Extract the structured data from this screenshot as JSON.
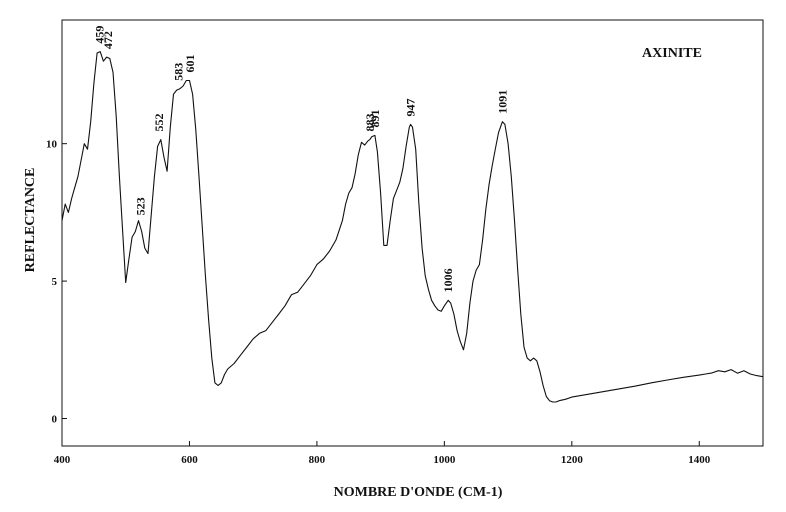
{
  "chart_data": {
    "type": "line",
    "title": "AXINITE",
    "xlabel": "NOMBRE D'ONDE (CM-1)",
    "ylabel": "REFLECTANCE",
    "xlim": [
      400,
      1500
    ],
    "ylim": [
      -1,
      14.5
    ],
    "xticks": [
      "400",
      "600",
      "800",
      "1000",
      "1200",
      "1400"
    ],
    "yticks": [
      "0",
      "5",
      "10"
    ],
    "grid": false,
    "x": [
      400,
      405,
      410,
      415,
      420,
      425,
      430,
      435,
      440,
      445,
      450,
      455,
      460,
      465,
      470,
      475,
      480,
      485,
      490,
      495,
      500,
      505,
      510,
      515,
      520,
      525,
      530,
      535,
      540,
      545,
      550,
      555,
      560,
      565,
      570,
      575,
      580,
      585,
      590,
      595,
      600,
      605,
      610,
      615,
      620,
      625,
      630,
      635,
      640,
      645,
      650,
      655,
      660,
      670,
      680,
      690,
      700,
      710,
      720,
      730,
      740,
      750,
      760,
      770,
      780,
      790,
      800,
      810,
      820,
      830,
      840,
      845,
      850,
      855,
      860,
      865,
      870,
      875,
      880,
      883,
      886,
      891,
      895,
      900,
      905,
      910,
      915,
      920,
      925,
      930,
      935,
      940,
      945,
      947,
      950,
      955,
      960,
      965,
      970,
      975,
      980,
      985,
      990,
      995,
      1000,
      1006,
      1010,
      1015,
      1020,
      1025,
      1030,
      1035,
      1040,
      1045,
      1050,
      1055,
      1060,
      1065,
      1070,
      1075,
      1080,
      1085,
      1091,
      1095,
      1100,
      1105,
      1110,
      1115,
      1120,
      1125,
      1130,
      1135,
      1140,
      1145,
      1150,
      1155,
      1160,
      1165,
      1170,
      1175,
      1180,
      1190,
      1200,
      1225,
      1250,
      1275,
      1300,
      1325,
      1350,
      1375,
      1400,
      1410,
      1420,
      1430,
      1440,
      1450,
      1460,
      1470,
      1480,
      1490,
      1500
    ],
    "y": [
      7.2,
      7.8,
      7.5,
      8.0,
      8.4,
      8.8,
      9.4,
      10.0,
      9.8,
      10.8,
      12.2,
      13.3,
      13.35,
      13.0,
      13.15,
      13.1,
      12.6,
      11.0,
      8.8,
      6.9,
      4.95,
      5.8,
      6.6,
      6.8,
      7.2,
      6.8,
      6.2,
      6.0,
      7.4,
      8.8,
      9.9,
      10.15,
      9.5,
      9.0,
      10.6,
      11.8,
      11.95,
      12.0,
      12.1,
      12.3,
      12.3,
      11.8,
      10.5,
      8.8,
      7.0,
      5.2,
      3.6,
      2.2,
      1.3,
      1.2,
      1.3,
      1.6,
      1.8,
      2.0,
      2.3,
      2.6,
      2.9,
      3.1,
      3.2,
      3.5,
      3.8,
      4.1,
      4.5,
      4.6,
      4.9,
      5.2,
      5.6,
      5.8,
      6.1,
      6.5,
      7.2,
      7.8,
      8.2,
      8.4,
      8.9,
      9.6,
      10.05,
      9.95,
      10.1,
      10.15,
      10.25,
      10.3,
      9.7,
      8.2,
      6.3,
      6.3,
      7.2,
      8.0,
      8.3,
      8.6,
      9.1,
      9.9,
      10.6,
      10.7,
      10.6,
      9.8,
      7.8,
      6.2,
      5.2,
      4.7,
      4.3,
      4.1,
      3.95,
      3.9,
      4.1,
      4.3,
      4.2,
      3.8,
      3.2,
      2.8,
      2.5,
      3.1,
      4.2,
      5.0,
      5.4,
      5.6,
      6.5,
      7.6,
      8.5,
      9.2,
      9.8,
      10.4,
      10.8,
      10.7,
      10.0,
      8.8,
      7.2,
      5.4,
      3.8,
      2.6,
      2.2,
      2.1,
      2.2,
      2.1,
      1.7,
      1.2,
      0.8,
      0.65,
      0.6,
      0.6,
      0.65,
      0.7,
      0.78,
      0.88,
      0.98,
      1.08,
      1.18,
      1.3,
      1.4,
      1.5,
      1.58,
      1.62,
      1.66,
      1.74,
      1.7,
      1.78,
      1.65,
      1.74,
      1.62,
      1.56,
      1.52
    ],
    "annotations": [
      {
        "text": "459",
        "x": 459,
        "y": 13.35
      },
      {
        "text": "472",
        "x": 472,
        "y": 13.15
      },
      {
        "text": "523",
        "x": 523,
        "y": 7.1
      },
      {
        "text": "552",
        "x": 552,
        "y": 10.15
      },
      {
        "text": "583",
        "x": 583,
        "y": 12.0
      },
      {
        "text": "601",
        "x": 601,
        "y": 12.3
      },
      {
        "text": "883",
        "x": 883,
        "y": 10.15
      },
      {
        "text": "891",
        "x": 891,
        "y": 10.3
      },
      {
        "text": "947",
        "x": 947,
        "y": 10.7
      },
      {
        "text": "1006",
        "x": 1006,
        "y": 4.3
      },
      {
        "text": "1091",
        "x": 1091,
        "y": 10.8
      }
    ]
  }
}
